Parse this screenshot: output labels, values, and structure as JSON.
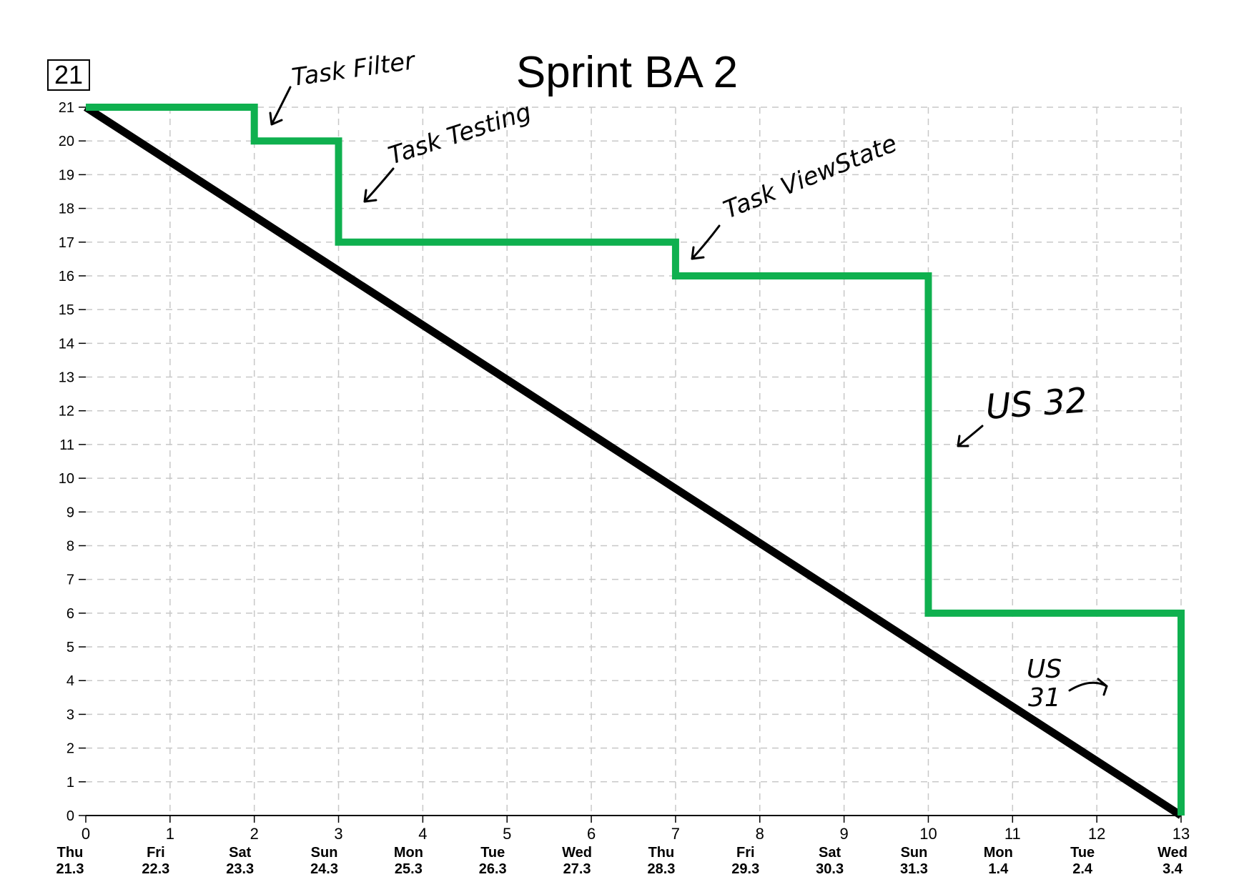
{
  "box_label": "21",
  "chart_data": {
    "type": "line",
    "title": "Sprint BA 2",
    "xlim": [
      0,
      13
    ],
    "ylim": [
      0,
      21
    ],
    "grid": true,
    "x_ticks": [
      0,
      1,
      2,
      3,
      4,
      5,
      6,
      7,
      8,
      9,
      10,
      11,
      12,
      13
    ],
    "y_ticks": [
      0,
      1,
      2,
      3,
      4,
      5,
      6,
      7,
      8,
      9,
      10,
      11,
      12,
      13,
      14,
      15,
      16,
      17,
      18,
      19,
      20,
      21
    ],
    "x_day_labels": [
      {
        "day": "Thu",
        "date": "21.3"
      },
      {
        "day": "Fri",
        "date": "22.3"
      },
      {
        "day": "Sat",
        "date": "23.3"
      },
      {
        "day": "Sun",
        "date": "24.3"
      },
      {
        "day": "Mon",
        "date": "25.3"
      },
      {
        "day": "Tue",
        "date": "26.3"
      },
      {
        "day": "Wed",
        "date": "27.3"
      },
      {
        "day": "Thu",
        "date": "28.3"
      },
      {
        "day": "Fri",
        "date": "29.3"
      },
      {
        "day": "Sat",
        "date": "30.3"
      },
      {
        "day": "Sun",
        "date": "31.3"
      },
      {
        "day": "Mon",
        "date": "1.4"
      },
      {
        "day": "Tue",
        "date": "2.4"
      },
      {
        "day": "Wed",
        "date": "3.4"
      }
    ],
    "series": [
      {
        "color": "#000000",
        "points": [
          [
            0,
            21
          ],
          [
            13,
            0
          ]
        ]
      },
      {
        "color": "#0fb04f",
        "points": [
          [
            0,
            21
          ],
          [
            2,
            21
          ],
          [
            2,
            20
          ],
          [
            3,
            20
          ],
          [
            3,
            17
          ],
          [
            7,
            17
          ],
          [
            7,
            16
          ],
          [
            10,
            16
          ],
          [
            10,
            6
          ],
          [
            13,
            6
          ],
          [
            13,
            0
          ]
        ]
      }
    ],
    "annotations": [
      {
        "text": "Task Filter",
        "x": 2,
        "y": 20.5
      },
      {
        "text": "Task Testing",
        "x": 3,
        "y": 18.5
      },
      {
        "text": "Task ViewState",
        "x": 7,
        "y": 16.5
      },
      {
        "text": "US 32",
        "x": 10,
        "y": 11
      },
      {
        "text": "US 31",
        "x": 13,
        "y": 3.5
      }
    ]
  }
}
